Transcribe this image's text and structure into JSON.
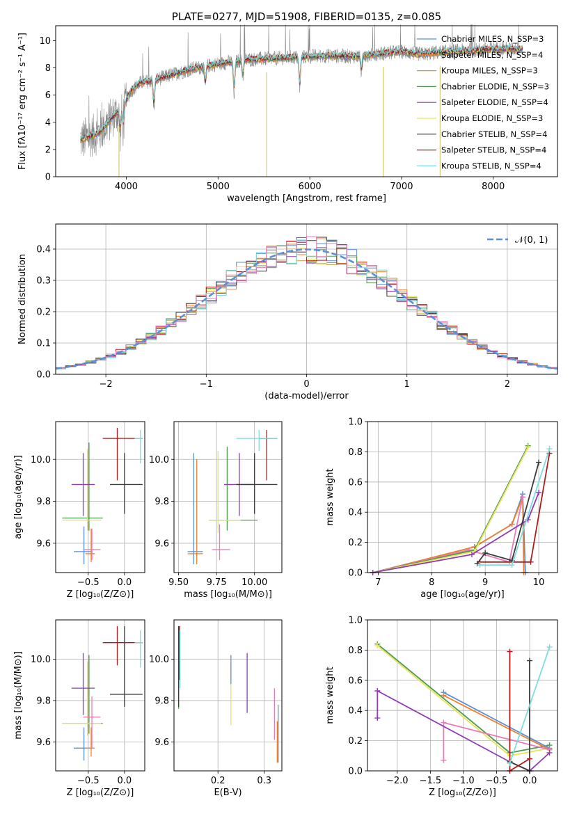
{
  "chart_data": [
    {
      "type": "line",
      "title": "PLATE=0277, MJD=51908, FIBERID=0135, z=0.085",
      "xlabel": "wavelength [Angstrom, rest frame]",
      "ylabel": "Flux [fλ10⁻¹⁷ erg cm⁻² s⁻¹ A⁻¹]",
      "xlim": [
        3230,
        8700
      ],
      "ylim": [
        0,
        11.1
      ],
      "xticks": [
        4000,
        5000,
        6000,
        7000,
        8000
      ],
      "yticks": [
        0,
        2,
        4,
        6,
        8,
        10
      ],
      "grid": false,
      "legend_position": "right",
      "series": [
        {
          "name": "Chabrier MILES, N_SSP=3",
          "color": "#5b8fd6"
        },
        {
          "name": "Salpeter MILES, N_SSP=4",
          "color": "#f07f2a"
        },
        {
          "name": "Kroupa MILES, N_SSP=3",
          "color": "#c49a3c"
        },
        {
          "name": "Chabrier ELODIE, N_SSP=3",
          "color": "#4d9a4d"
        },
        {
          "name": "Salpeter ELODIE, N_SSP=4",
          "color": "#8e3bb5"
        },
        {
          "name": "Kroupa ELODIE, N_SSP=3",
          "color": "#e8e35a"
        },
        {
          "name": "Chabrier STELIB, N_SSP=4",
          "color": "#3a3a3a"
        },
        {
          "name": "Salpeter STELIB, N_SSP=4",
          "color": "#b01c1c"
        },
        {
          "name": "Kroupa STELIB, N_SSP=4",
          "color": "#7fdcdc"
        }
      ],
      "continuum_points": [
        [
          3500,
          2.7
        ],
        [
          3700,
          3.2
        ],
        [
          3850,
          4.4
        ],
        [
          3950,
          5.0
        ],
        [
          4050,
          6.3
        ],
        [
          4150,
          6.9
        ],
        [
          4300,
          7.1
        ],
        [
          4500,
          7.5
        ],
        [
          4700,
          7.9
        ],
        [
          5000,
          8.3
        ],
        [
          5300,
          8.6
        ],
        [
          5600,
          8.7
        ],
        [
          5900,
          8.8
        ],
        [
          6200,
          8.9
        ],
        [
          6500,
          8.85
        ],
        [
          6700,
          9.0
        ],
        [
          7000,
          9.2
        ],
        [
          7200,
          9.0
        ],
        [
          7500,
          9.2
        ],
        [
          7800,
          9.3
        ],
        [
          8000,
          9.4
        ],
        [
          8300,
          9.4
        ]
      ],
      "absorption_features": [
        {
          "x": 3934,
          "depth": 0.4
        },
        {
          "x": 3968,
          "depth": 0.4
        },
        {
          "x": 4300,
          "depth": 0.5
        },
        {
          "x": 4861,
          "depth": 0.35
        },
        {
          "x": 5175,
          "depth": 0.6
        },
        {
          "x": 5270,
          "depth": 0.3
        },
        {
          "x": 5890,
          "depth": 0.6
        },
        {
          "x": 6563,
          "depth": 0.3
        }
      ],
      "data_gaps": [
        3920,
        5530,
        6800,
        7420
      ]
    },
    {
      "type": "step",
      "xlabel": "(data-model)/error",
      "ylabel": "Normed distribution",
      "xlim": [
        -2.5,
        2.5
      ],
      "ylim": [
        0,
        0.48
      ],
      "xticks": [
        -2,
        -1,
        0,
        1,
        2
      ],
      "yticks": [
        0.0,
        0.1,
        0.2,
        0.3,
        0.4
      ],
      "grid": true,
      "legend_position": "top-right",
      "legend": "𝒩(0, 1)",
      "reference_curve": {
        "name": "𝒩(0, 1)",
        "mu": 0,
        "sigma": 1,
        "color": "#5b8fd6",
        "dashed": true
      },
      "bin_width": 0.1
    },
    {
      "type": "scatter",
      "xlabel": "Z [log₁₀(Z/Z⊙)]",
      "ylabel": "age  [log₁₀(age/yr)]",
      "xlim": [
        -0.95,
        0.28
      ],
      "ylim": [
        9.46,
        10.18
      ],
      "xticks": [
        -0.5,
        0.0
      ],
      "yticks": [
        9.6,
        9.8,
        10.0
      ],
      "grid": true,
      "points": [
        {
          "x": -0.49,
          "y": 9.72,
          "color": "#4d9a4d",
          "xerr": [
            0.37,
            0.19
          ],
          "yerr": [
            0.06,
            0.36
          ]
        },
        {
          "x": -0.51,
          "y": 9.71,
          "color": "#e8e35a",
          "xerr": [
            0.35,
            0.19
          ],
          "yerr": [
            0.05,
            0.34
          ]
        },
        {
          "x": -0.56,
          "y": 9.56,
          "color": "#5b8fd6",
          "xerr": [
            0.14,
            0.12
          ],
          "yerr": [
            0.06,
            0.12
          ]
        },
        {
          "x": -0.46,
          "y": 9.55,
          "color": "#f07f2a",
          "xerr": [
            0.08,
            0.05
          ],
          "yerr": [
            0.04,
            0.12
          ]
        },
        {
          "x": -0.45,
          "y": 9.57,
          "color": "#e87ab8",
          "xerr": [
            0.12,
            0.12
          ],
          "yerr": [
            0.05,
            0.1
          ]
        },
        {
          "x": -0.57,
          "y": 9.88,
          "color": "#8e3bb5",
          "xerr": [
            0.16,
            0.16
          ],
          "yerr": [
            0.15,
            0.15
          ]
        },
        {
          "x": 0.0,
          "y": 9.88,
          "color": "#3a3a3a",
          "xerr": [
            0.2,
            0.25
          ],
          "yerr": [
            0.14,
            0.15
          ]
        },
        {
          "x": -0.1,
          "y": 10.1,
          "color": "#b01c1c",
          "xerr": [
            0.2,
            0.35
          ],
          "yerr": [
            0.2,
            0.05
          ]
        },
        {
          "x": 0.22,
          "y": 10.1,
          "color": "#7fdcdc",
          "xerr": [
            0.08,
            0.03
          ],
          "yerr": [
            0.12,
            0.04
          ]
        }
      ]
    },
    {
      "type": "scatter",
      "xlabel": "mass [log₁₀(M/M⊙)]",
      "ylabel": "",
      "xlim": [
        9.47,
        10.18
      ],
      "ylim": [
        9.46,
        10.18
      ],
      "xticks": [
        9.5,
        9.75,
        10.0
      ],
      "xticklabels": [
        "9.50",
        "9.75",
        "10.00"
      ],
      "yticks": [
        9.6,
        9.8,
        10.0
      ],
      "grid": true,
      "points": [
        {
          "x": 9.82,
          "y": 9.71,
          "color": "#4d9a4d",
          "xerr": [
            0.12,
            0.2
          ],
          "yerr": [
            0.05,
            0.35
          ]
        },
        {
          "x": 9.76,
          "y": 9.71,
          "color": "#e8e35a",
          "xerr": [
            0.06,
            0.15
          ],
          "yerr": [
            0.06,
            0.33
          ]
        },
        {
          "x": 9.6,
          "y": 9.56,
          "color": "#5b8fd6",
          "xerr": [
            0.04,
            0.06
          ],
          "yerr": [
            0.06,
            0.47
          ]
        },
        {
          "x": 9.62,
          "y": 9.55,
          "color": "#f07f2a",
          "xerr": [
            0.06,
            0.04
          ],
          "yerr": [
            0.05,
            0.45
          ]
        },
        {
          "x": 9.77,
          "y": 9.57,
          "color": "#e87ab8",
          "xerr": [
            0.05,
            0.07
          ],
          "yerr": [
            0.05,
            0.12
          ]
        },
        {
          "x": 9.9,
          "y": 9.88,
          "color": "#8e3bb5",
          "xerr": [
            0.1,
            0.1
          ],
          "yerr": [
            0.15,
            0.15
          ]
        },
        {
          "x": 10.0,
          "y": 9.88,
          "color": "#3a3a3a",
          "xerr": [
            0.12,
            0.15
          ],
          "yerr": [
            0.14,
            0.15
          ]
        },
        {
          "x": 10.08,
          "y": 10.1,
          "color": "#b01c1c",
          "xerr": [
            0.05,
            0.07
          ],
          "yerr": [
            0.2,
            0.04
          ]
        },
        {
          "x": 10.03,
          "y": 10.1,
          "color": "#7fdcdc",
          "xerr": [
            0.15,
            0.12
          ],
          "yerr": [
            0.06,
            0.04
          ]
        }
      ]
    },
    {
      "type": "line",
      "xlabel": "age  [log₁₀(age/yr)]",
      "ylabel": "mass weight",
      "xlim": [
        6.8,
        10.35
      ],
      "ylim": [
        0.0,
        1.0
      ],
      "xticks": [
        7,
        8,
        9,
        10
      ],
      "yticks": [
        0.0,
        0.2,
        0.4,
        0.6,
        0.8,
        1.0
      ],
      "grid": true,
      "series": [
        {
          "color": "#5b8fd6",
          "x": [
            6.9,
            8.8,
            9.5,
            9.7,
            9.75
          ],
          "y": [
            0.0,
            0.17,
            0.32,
            0.52,
            0.0
          ]
        },
        {
          "color": "#f07f2a",
          "x": [
            6.9,
            8.8,
            9.5,
            9.7,
            9.72
          ],
          "y": [
            0.0,
            0.17,
            0.32,
            0.5,
            0.0
          ]
        },
        {
          "color": "#e87ab8",
          "x": [
            6.9,
            8.7,
            9.45,
            9.7
          ],
          "y": [
            0.0,
            0.15,
            0.07,
            0.5
          ]
        },
        {
          "color": "#4d9a4d",
          "x": [
            6.9,
            8.8,
            9.8
          ],
          "y": [
            0.0,
            0.15,
            0.84
          ]
        },
        {
          "color": "#e8e35a",
          "x": [
            6.9,
            8.8,
            9.8
          ],
          "y": [
            0.0,
            0.14,
            0.83
          ]
        },
        {
          "color": "#8e3bb5",
          "x": [
            6.9,
            8.75,
            9.8,
            10.0
          ],
          "y": [
            0.0,
            0.12,
            0.35,
            0.53
          ]
        },
        {
          "color": "#3a3a3a",
          "x": [
            8.85,
            9.0,
            9.5,
            10.0
          ],
          "y": [
            0.06,
            0.13,
            0.08,
            0.73
          ]
        },
        {
          "color": "#b01c1c",
          "x": [
            8.9,
            9.85,
            10.2
          ],
          "y": [
            0.07,
            0.07,
            0.79
          ]
        },
        {
          "color": "#7fdcdc",
          "x": [
            8.9,
            9.5,
            10.2
          ],
          "y": [
            0.05,
            0.05,
            0.82
          ]
        }
      ]
    },
    {
      "type": "scatter",
      "xlabel": "Z [log₁₀(Z/Z⊙)]",
      "ylabel": "mass [log₁₀(M/M⊙)]",
      "xlim": [
        -0.95,
        0.28
      ],
      "ylim": [
        9.46,
        10.19
      ],
      "xticks": [
        -0.5,
        0.0
      ],
      "yticks": [
        9.6,
        9.8,
        10.0
      ],
      "grid": true,
      "points": [
        {
          "x": -0.49,
          "y": 9.69,
          "color": "#4d9a4d",
          "xerr": [
            0.37,
            0.19
          ],
          "yerr": [
            0.05,
            0.33
          ]
        },
        {
          "x": -0.51,
          "y": 9.69,
          "color": "#e8e35a",
          "xerr": [
            0.35,
            0.19
          ],
          "yerr": [
            0.06,
            0.3
          ]
        },
        {
          "x": -0.56,
          "y": 9.57,
          "color": "#5b8fd6",
          "xerr": [
            0.14,
            0.12
          ],
          "yerr": [
            0.06,
            0.1
          ]
        },
        {
          "x": -0.46,
          "y": 9.57,
          "color": "#f07f2a",
          "xerr": [
            0.08,
            0.05
          ],
          "yerr": [
            0.04,
            0.1
          ]
        },
        {
          "x": -0.45,
          "y": 9.72,
          "color": "#e87ab8",
          "xerr": [
            0.12,
            0.12
          ],
          "yerr": [
            0.15,
            0.1
          ]
        },
        {
          "x": -0.57,
          "y": 9.86,
          "color": "#8e3bb5",
          "xerr": [
            0.16,
            0.16
          ],
          "yerr": [
            0.13,
            0.17
          ]
        },
        {
          "x": 0.0,
          "y": 9.83,
          "color": "#3a3a3a",
          "xerr": [
            0.2,
            0.25
          ],
          "yerr": [
            0.06,
            0.33
          ]
        },
        {
          "x": -0.1,
          "y": 10.08,
          "color": "#b01c1c",
          "xerr": [
            0.2,
            0.35
          ],
          "yerr": [
            0.11,
            0.08
          ]
        },
        {
          "x": 0.22,
          "y": 10.08,
          "color": "#7fdcdc",
          "xerr": [
            0.08,
            0.03
          ],
          "yerr": [
            0.12,
            0.06
          ]
        }
      ]
    },
    {
      "type": "scatter",
      "xlabel": "E(B-V)",
      "ylabel": "",
      "xlim": [
        0.105,
        0.338
      ],
      "ylim": [
        9.46,
        10.19
      ],
      "xticks": [
        0.2,
        0.3
      ],
      "yticks": [
        9.6,
        9.8,
        10.0
      ],
      "grid": true,
      "points": [
        {
          "x": 0.115,
          "y": 9.96,
          "color": "#4d9a4d",
          "yerr": [
            0.2,
            0.2
          ]
        },
        {
          "x": 0.115,
          "y": 10.0,
          "color": "#3a3a3a",
          "yerr": [
            0.23,
            0.16
          ]
        },
        {
          "x": 0.117,
          "y": 10.0,
          "color": "#b01c1c",
          "yerr": [
            0.1,
            0.16
          ]
        },
        {
          "x": 0.118,
          "y": 9.99,
          "color": "#7fdcdc",
          "yerr": [
            0.13,
            0.15
          ]
        },
        {
          "x": 0.228,
          "y": 9.83,
          "color": "#e8e35a",
          "yerr": [
            0.15,
            0.15
          ]
        },
        {
          "x": 0.228,
          "y": 9.93,
          "color": "#5b8fd6",
          "yerr": [
            0.05,
            0.09
          ]
        },
        {
          "x": 0.263,
          "y": 9.89,
          "color": "#8e3bb5",
          "yerr": [
            0.15,
            0.14
          ]
        },
        {
          "x": 0.322,
          "y": 9.75,
          "color": "#e87ab8",
          "yerr": [
            0.14,
            0.11
          ]
        },
        {
          "x": 0.328,
          "y": 9.6,
          "color": "#f07f2a",
          "yerr": [
            0.1,
            0.1
          ]
        },
        {
          "x": 0.33,
          "y": 9.64,
          "color": "#5b8fd6",
          "yerr": [
            0.14,
            0.14
          ]
        }
      ]
    },
    {
      "type": "line",
      "xlabel": "Z [log₁₀(Z/Z⊙)]",
      "ylabel": "mass weight",
      "xlim": [
        -2.45,
        0.42
      ],
      "ylim": [
        0.0,
        1.0
      ],
      "xticks": [
        -2.0,
        -1.5,
        -1.0,
        -0.5,
        0.0
      ],
      "xticklabels": [
        "−2.0",
        "−1.5",
        "−1.0",
        "−0.5",
        "0.0"
      ],
      "yticks": [
        0.0,
        0.2,
        0.4,
        0.6,
        0.8,
        1.0
      ],
      "grid": true,
      "series": [
        {
          "color": "#4d9a4d",
          "x": [
            -2.3,
            -0.3,
            0.3
          ],
          "y": [
            0.84,
            0.12,
            0.17
          ]
        },
        {
          "color": "#e8e35a",
          "x": [
            -2.3,
            -0.3,
            0.3
          ],
          "y": [
            0.83,
            0.1,
            0.15
          ]
        },
        {
          "color": "#5b8fd6",
          "x": [
            -1.3,
            0.3
          ],
          "y": [
            0.52,
            0.15
          ]
        },
        {
          "color": "#f07f2a",
          "x": [
            -1.3,
            0.3
          ],
          "y": [
            0.5,
            0.14
          ]
        },
        {
          "color": "#e87ab8",
          "x": [
            -1.3,
            -1.3,
            0.3
          ],
          "y": [
            0.07,
            0.32,
            0.14
          ]
        },
        {
          "color": "#8e3bb5",
          "x": [
            -2.3,
            -2.3,
            -0.3,
            0.0,
            0.3
          ],
          "y": [
            0.35,
            0.53,
            0.06,
            0.0,
            0.12
          ]
        },
        {
          "color": "#3a3a3a",
          "x": [
            -0.3,
            0.0,
            0.0
          ],
          "y": [
            0.06,
            0.0,
            0.73
          ]
        },
        {
          "color": "#b01c1c",
          "x": [
            -0.3,
            -0.3,
            0.0
          ],
          "y": [
            0.79,
            0.0,
            0.08
          ]
        },
        {
          "color": "#7fdcdc",
          "x": [
            -0.3,
            0.3
          ],
          "y": [
            0.05,
            0.82
          ]
        }
      ]
    }
  ]
}
